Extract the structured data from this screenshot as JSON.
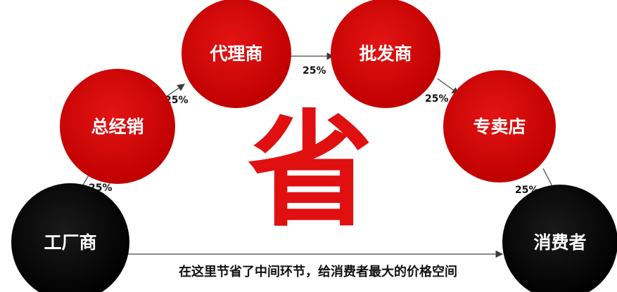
{
  "colors": {
    "red_node": "#cc0000",
    "red_node_light": "#e31414",
    "black_node": "#000000",
    "big_char": "#e01010",
    "arrow": "#555555"
  },
  "nodes": {
    "factory": "工厂商",
    "general_distributor": "总经销",
    "agent": "代理商",
    "wholesaler": "批发商",
    "specialty_store": "专卖店",
    "consumer": "消费者"
  },
  "edges": [
    {
      "label": "25%"
    },
    {
      "label": "25%"
    },
    {
      "label": "25%"
    },
    {
      "label": "25%"
    },
    {
      "label": "25%"
    }
  ],
  "center_text": "省",
  "caption": "在这里节省了中间环节，给消费者最大的价格空间"
}
